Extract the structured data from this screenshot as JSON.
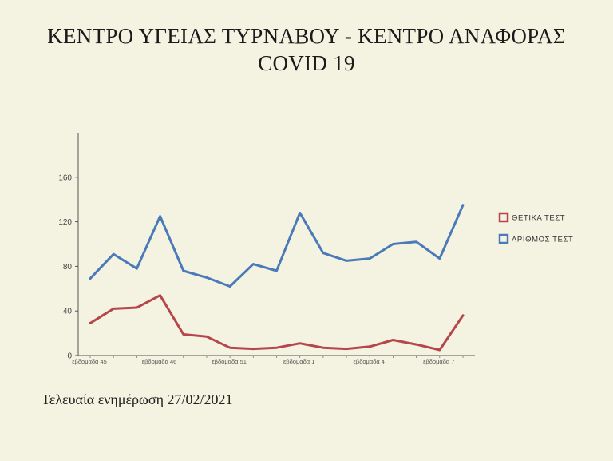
{
  "header": {
    "title_line1": "ΚΕΝΤΡΟ ΥΓΕΙΑΣ ΤΥΡΝΑΒΟΥ -  ΚΕΝΤΡΟ ΑΝΑΦΟΡΑΣ",
    "title_line2": "COVID 19"
  },
  "footer": {
    "update_text": "Τελευαία ενημέρωση 27/02/2021"
  },
  "chart_data": {
    "type": "line",
    "x": [
      "εβδομαδα 45",
      "",
      "",
      "εβδομαδα 46",
      "",
      "",
      "εβδομαδα 51",
      "",
      "",
      "εβδομαδα 1",
      "",
      "",
      "εβδομαδα 4",
      "",
      "",
      "εβδομαδα 7",
      ""
    ],
    "x_tick_labels": [
      "εβδομαδα 45",
      "εβδομαδα 46",
      "εβδομαδα 51",
      "εβδομαδα 1",
      "εβδομαδα 4",
      "εβδομαδα 7"
    ],
    "series": [
      {
        "name": "ΘΕΤΙΚΑ ΤΕΣΤ",
        "color": "#b5474c",
        "values": [
          29,
          42,
          43,
          54,
          19,
          17,
          7,
          6,
          7,
          11,
          7,
          6,
          8,
          14,
          10,
          5,
          36
        ]
      },
      {
        "name": "ΑΡΙΘΜΟΣ ΤΕΣΤ",
        "color": "#4a7ab7",
        "values": [
          69,
          91,
          78,
          125,
          76,
          70,
          62,
          82,
          76,
          128,
          92,
          85,
          87,
          100,
          102,
          87,
          135
        ]
      }
    ],
    "y_ticks": [
      0,
      40,
      80,
      120,
      160
    ],
    "ylim": [
      0,
      200
    ],
    "grid": false,
    "legend_position": "right"
  }
}
